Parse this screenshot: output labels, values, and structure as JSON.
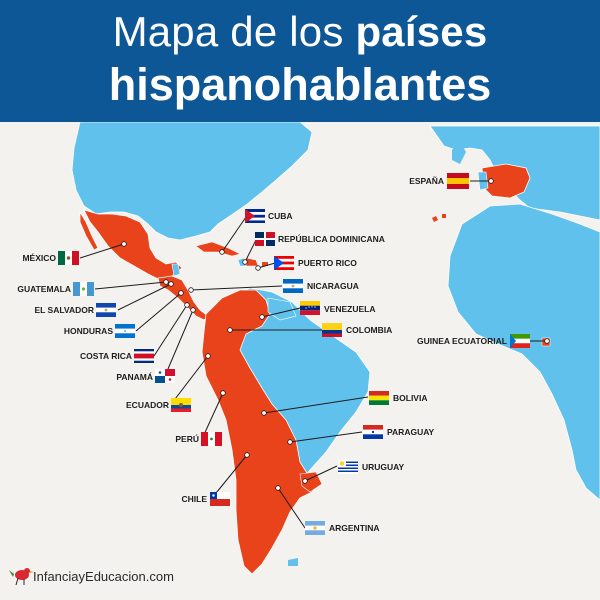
{
  "header": {
    "title_light": "Mapa de los",
    "title_bold": "países",
    "title_line2": "hispanohablantes"
  },
  "countries": {
    "espana": "ESPAÑA",
    "cuba": "CUBA",
    "rep_dominicana": "REPÚBLICA DOMINICANA",
    "mexico": "MÉXICO",
    "puerto_rico": "PUERTO RICO",
    "guatemala": "GUATEMALA",
    "nicaragua": "NICARAGUA",
    "el_salvador": "EL SALVADOR",
    "venezuela": "VENEZUELA",
    "honduras": "HONDURAS",
    "colombia": "COLOMBIA",
    "costa_rica": "COSTA RICA",
    "guinea_ecuatorial": "GUINEA ECUATORIAL",
    "panama": "PANAMÁ",
    "ecuador": "ECUADOR",
    "bolivia": "BOLIVIA",
    "peru": "PERÚ",
    "paraguay": "PARAGUAY",
    "uruguay": "URUGUAY",
    "chile": "CHILE",
    "argentina": "ARGENTINA"
  },
  "footer": {
    "brand": "InfanciayEducacion.com"
  },
  "colors": {
    "header_bg": "#0d5796",
    "land_other": "#5fc1ec",
    "land_spanish": "#e8431b",
    "background": "#f4f2ef"
  }
}
